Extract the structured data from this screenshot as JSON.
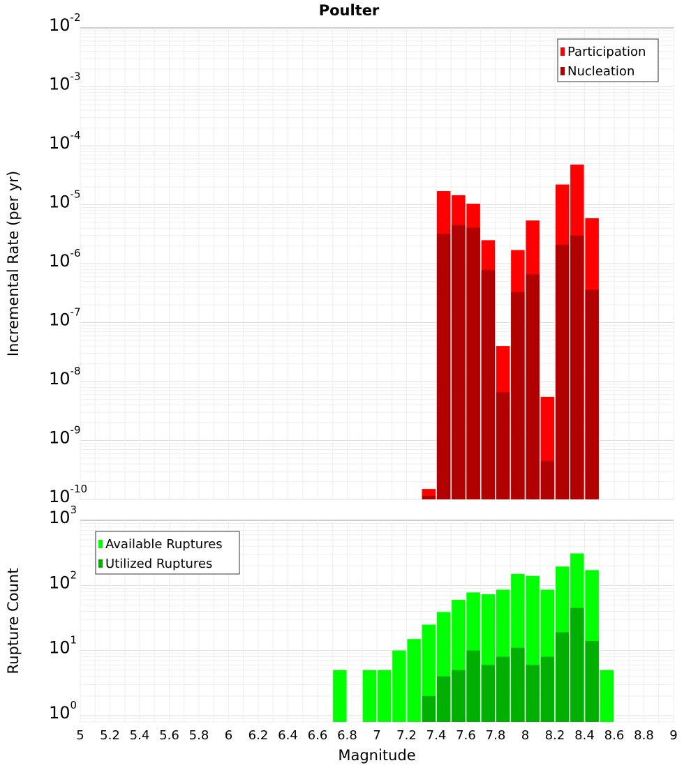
{
  "chart_data": [
    {
      "type": "bar",
      "title": "Poulter",
      "xlabel": "Magnitude",
      "ylabel": "Incremental Rate (per yr)",
      "yscale": "log",
      "ylim": [
        1e-10,
        0.01
      ],
      "xlim": [
        5,
        9
      ],
      "y_tick_exponents": [
        -10,
        -9,
        -8,
        -7,
        -6,
        -5,
        -4,
        -3,
        -2
      ],
      "legend_position": "top-right",
      "x": [
        7.35,
        7.45,
        7.55,
        7.65,
        7.75,
        7.85,
        7.95,
        8.05,
        8.15,
        8.25,
        8.35,
        8.45
      ],
      "series": [
        {
          "name": "Participation",
          "color": "#ff0000",
          "values": [
            1.5e-10,
            1.7e-05,
            1.45e-05,
            1.04e-05,
            2.5e-06,
            4e-08,
            1.7e-06,
            5.4e-06,
            5.5e-09,
            2.2e-05,
            4.8e-05,
            5.9e-06
          ]
        },
        {
          "name": "Nucleation",
          "color": "#b00000",
          "values": [
            1.15e-10,
            3.2e-06,
            4.5e-06,
            4.1e-06,
            7.8e-07,
            6.6e-09,
            3.3e-07,
            6.6e-07,
            4.5e-10,
            2.1e-06,
            3e-06,
            3.6e-07
          ]
        }
      ]
    },
    {
      "type": "bar",
      "xlabel": "Magnitude",
      "ylabel": "Rupture Count",
      "yscale": "log",
      "ylim": [
        0.8,
        1000
      ],
      "xlim": [
        5,
        9
      ],
      "y_tick_exponents": [
        0,
        1,
        2,
        3
      ],
      "x_ticks": [
        "5",
        "5.2",
        "5.4",
        "5.6",
        "5.8",
        "6",
        "6.2",
        "6.4",
        "6.6",
        "6.8",
        "7",
        "7.2",
        "7.4",
        "7.6",
        "7.8",
        "8",
        "8.2",
        "8.4",
        "8.6",
        "8.8",
        "9"
      ],
      "legend_position": "top-left",
      "x": [
        6.75,
        6.95,
        7.05,
        7.15,
        7.25,
        7.35,
        7.45,
        7.55,
        7.65,
        7.75,
        7.85,
        7.95,
        8.05,
        8.15,
        8.25,
        8.35,
        8.45,
        8.55
      ],
      "series": [
        {
          "name": "Available Ruptures",
          "color": "#00ff00",
          "values": [
            5,
            5,
            5,
            10,
            15,
            25,
            39,
            60,
            78,
            73,
            86,
            150,
            140,
            86,
            195,
            310,
            172,
            5
          ]
        },
        {
          "name": "Utilized Ruptures",
          "color": "#00b000",
          "values": [
            0,
            0,
            0,
            0,
            0,
            2,
            4,
            5,
            10,
            6,
            8,
            11,
            6,
            8,
            19,
            45,
            14,
            0
          ]
        }
      ]
    }
  ]
}
